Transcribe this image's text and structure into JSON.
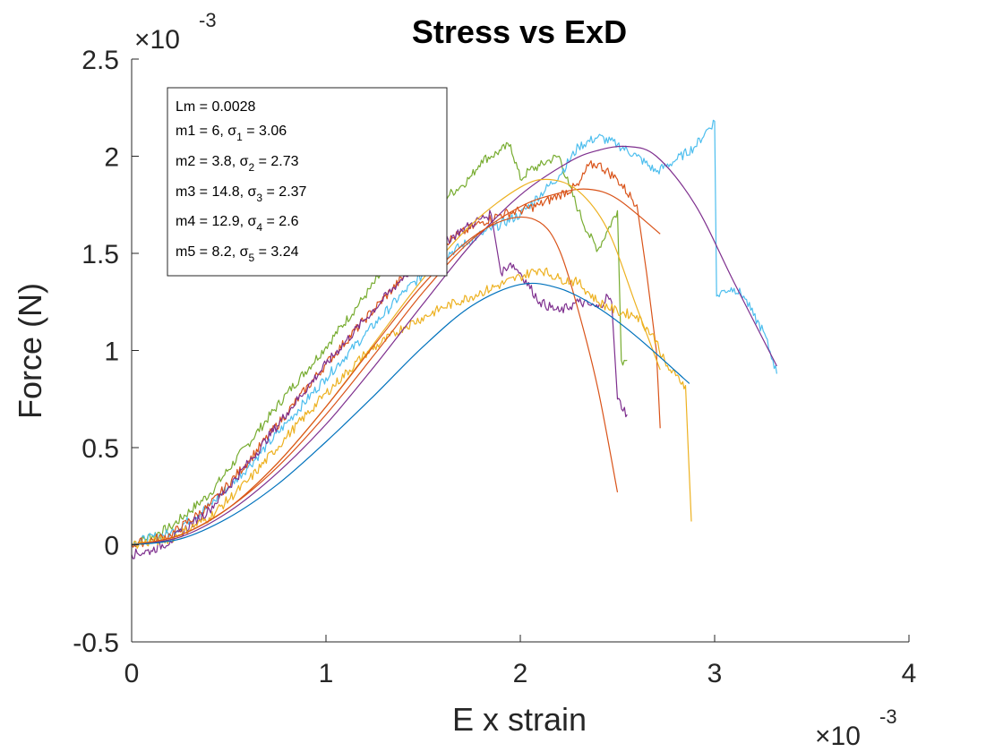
{
  "chart_data": {
    "type": "line",
    "title": "Stress vs ExD",
    "xlabel": "E x strain",
    "ylabel": "Force (N)",
    "x_scale_label": {
      "base": "×10",
      "exp": "-3"
    },
    "y_scale_label": {
      "base": "×10",
      "exp": "-3"
    },
    "xlim": [
      0,
      4
    ],
    "ylim": [
      -0.5,
      2.5
    ],
    "xticks": [
      0,
      1,
      2,
      3,
      4
    ],
    "xtick_labels": [
      "0",
      "1",
      "2",
      "3",
      "4"
    ],
    "yticks": [
      -0.5,
      0,
      0.5,
      1,
      1.5,
      2,
      2.5
    ],
    "ytick_labels": [
      "-0.5",
      "0",
      "0.5",
      "1",
      "1.5",
      "2",
      "2.5"
    ],
    "grid": false,
    "legend_placement": "top-left",
    "legend": [
      {
        "pre": "Lm = 0.0028",
        "sub": "",
        "post": ""
      },
      {
        "pre": "m1 = 6, σ",
        "sub": "1",
        "post": " = 3.06"
      },
      {
        "pre": "m2 = 3.8, σ",
        "sub": "2",
        "post": " = 2.73"
      },
      {
        "pre": "m3 = 14.8, σ",
        "sub": "3",
        "post": " = 2.37"
      },
      {
        "pre": "m4 = 12.9, σ",
        "sub": "4",
        "post": " = 2.6"
      },
      {
        "pre": "m5 = 8.2, σ",
        "sub": "5",
        "post": " = 3.24"
      }
    ],
    "series": [
      {
        "color": "#77AC30",
        "style": "noisy",
        "x": [
          0,
          0.2,
          0.4,
          0.6,
          0.8,
          1.0,
          1.2,
          1.4,
          1.5,
          1.6,
          1.7,
          1.75,
          1.8,
          1.85,
          1.9,
          1.95,
          2.0,
          2.05,
          2.1,
          2.15,
          2.2,
          2.25,
          2.3,
          2.35,
          2.4,
          2.45,
          2.5,
          2.52,
          2.55
        ],
        "y": [
          0,
          0.09,
          0.26,
          0.52,
          0.78,
          1.02,
          1.28,
          1.55,
          1.65,
          1.78,
          1.85,
          1.9,
          1.98,
          2.0,
          2.03,
          2.06,
          1.88,
          1.93,
          1.95,
          1.98,
          2.0,
          1.85,
          1.72,
          1.6,
          1.52,
          1.62,
          1.72,
          0.95,
          0.95
        ]
      },
      {
        "color": "#4DBEEE",
        "style": "noisy",
        "x": [
          0,
          0.2,
          0.4,
          0.6,
          0.8,
          1.0,
          1.2,
          1.4,
          1.6,
          1.8,
          2.0,
          2.2,
          2.3,
          2.4,
          2.5,
          2.6,
          2.7,
          2.8,
          2.9,
          2.95,
          3.0,
          3.01,
          3.05,
          3.1,
          3.15,
          3.2,
          3.25,
          3.3,
          3.32
        ],
        "y": [
          0.01,
          0.06,
          0.2,
          0.4,
          0.63,
          0.86,
          1.08,
          1.3,
          1.48,
          1.6,
          1.7,
          1.9,
          2.05,
          2.1,
          2.06,
          2.0,
          1.92,
          1.98,
          2.05,
          2.12,
          2.18,
          1.28,
          1.31,
          1.32,
          1.28,
          1.18,
          1.1,
          0.95,
          0.88
        ]
      },
      {
        "color": "#D95319",
        "style": "noisy",
        "x": [
          0,
          0.2,
          0.4,
          0.6,
          0.8,
          1.0,
          1.2,
          1.4,
          1.6,
          1.8,
          1.9,
          2.0,
          2.1,
          2.2,
          2.3,
          2.35,
          2.4,
          2.5,
          2.6,
          2.65,
          2.7,
          2.72
        ],
        "y": [
          0.0,
          0.05,
          0.2,
          0.43,
          0.68,
          0.93,
          1.16,
          1.38,
          1.55,
          1.66,
          1.7,
          1.72,
          1.75,
          1.8,
          1.85,
          1.95,
          1.96,
          1.88,
          1.75,
          1.4,
          1.0,
          0.6
        ]
      },
      {
        "color": "#7E2F8E",
        "style": "noisy",
        "x": [
          0,
          0.1,
          0.2,
          0.4,
          0.6,
          0.8,
          1.0,
          1.2,
          1.4,
          1.6,
          1.7,
          1.8,
          1.85,
          1.9,
          1.95,
          2.0,
          2.1,
          2.2,
          2.3,
          2.4,
          2.45,
          2.47,
          2.5,
          2.55
        ],
        "y": [
          -0.05,
          -0.03,
          0.02,
          0.18,
          0.42,
          0.68,
          0.93,
          1.16,
          1.38,
          1.55,
          1.62,
          1.68,
          1.7,
          1.4,
          1.45,
          1.4,
          1.25,
          1.2,
          1.25,
          1.22,
          1.28,
          1.25,
          0.75,
          0.67
        ]
      },
      {
        "color": "#EDB120",
        "style": "noisy",
        "x": [
          0,
          0.2,
          0.4,
          0.6,
          0.8,
          1.0,
          1.2,
          1.4,
          1.6,
          1.8,
          2.0,
          2.1,
          2.2,
          2.3,
          2.4,
          2.5,
          2.6,
          2.7,
          2.75,
          2.8,
          2.85,
          2.88
        ],
        "y": [
          0.0,
          0.03,
          0.14,
          0.33,
          0.56,
          0.78,
          0.98,
          1.12,
          1.22,
          1.3,
          1.38,
          1.42,
          1.37,
          1.35,
          1.25,
          1.2,
          1.18,
          1.05,
          0.92,
          0.87,
          0.82,
          0.12
        ]
      },
      {
        "color": "#7E2F8E",
        "style": "fit",
        "x": [
          0,
          0.25,
          0.5,
          0.75,
          1.0,
          1.25,
          1.5,
          1.75,
          2.0,
          2.25,
          2.4,
          2.55,
          2.7,
          2.9,
          3.1,
          3.32
        ],
        "y": [
          0,
          0.04,
          0.17,
          0.37,
          0.62,
          0.92,
          1.24,
          1.55,
          1.8,
          1.97,
          2.03,
          2.05,
          2.0,
          1.75,
          1.35,
          0.92
        ]
      },
      {
        "color": "#D95319",
        "style": "fit",
        "x": [
          0,
          0.25,
          0.5,
          0.75,
          1.0,
          1.25,
          1.5,
          1.75,
          2.0,
          2.2,
          2.35,
          2.5,
          2.72
        ],
        "y": [
          0,
          0.05,
          0.19,
          0.4,
          0.67,
          0.98,
          1.3,
          1.57,
          1.74,
          1.81,
          1.83,
          1.78,
          1.6
        ]
      },
      {
        "color": "#EDB120",
        "style": "fit",
        "x": [
          0,
          0.25,
          0.5,
          0.75,
          1.0,
          1.25,
          1.5,
          1.75,
          2.0,
          2.15,
          2.3,
          2.45,
          2.6,
          2.72
        ],
        "y": [
          0,
          0.05,
          0.19,
          0.42,
          0.71,
          1.04,
          1.37,
          1.65,
          1.84,
          1.88,
          1.82,
          1.62,
          1.22,
          0.9
        ]
      },
      {
        "color": "#D95319",
        "style": "fit",
        "x": [
          0,
          0.25,
          0.5,
          0.75,
          1.0,
          1.25,
          1.5,
          1.75,
          1.95,
          2.1,
          2.2,
          2.3,
          2.4,
          2.5
        ],
        "y": [
          0,
          0.05,
          0.19,
          0.42,
          0.71,
          1.03,
          1.34,
          1.58,
          1.68,
          1.66,
          1.52,
          1.2,
          0.8,
          0.27
        ]
      },
      {
        "color": "#0072BD",
        "style": "fit",
        "x": [
          0,
          0.25,
          0.5,
          0.75,
          1.0,
          1.25,
          1.5,
          1.75,
          2.0,
          2.2,
          2.4,
          2.6,
          2.87
        ],
        "y": [
          0,
          0.03,
          0.14,
          0.31,
          0.53,
          0.77,
          1.02,
          1.23,
          1.34,
          1.32,
          1.22,
          1.07,
          0.83
        ]
      }
    ]
  }
}
